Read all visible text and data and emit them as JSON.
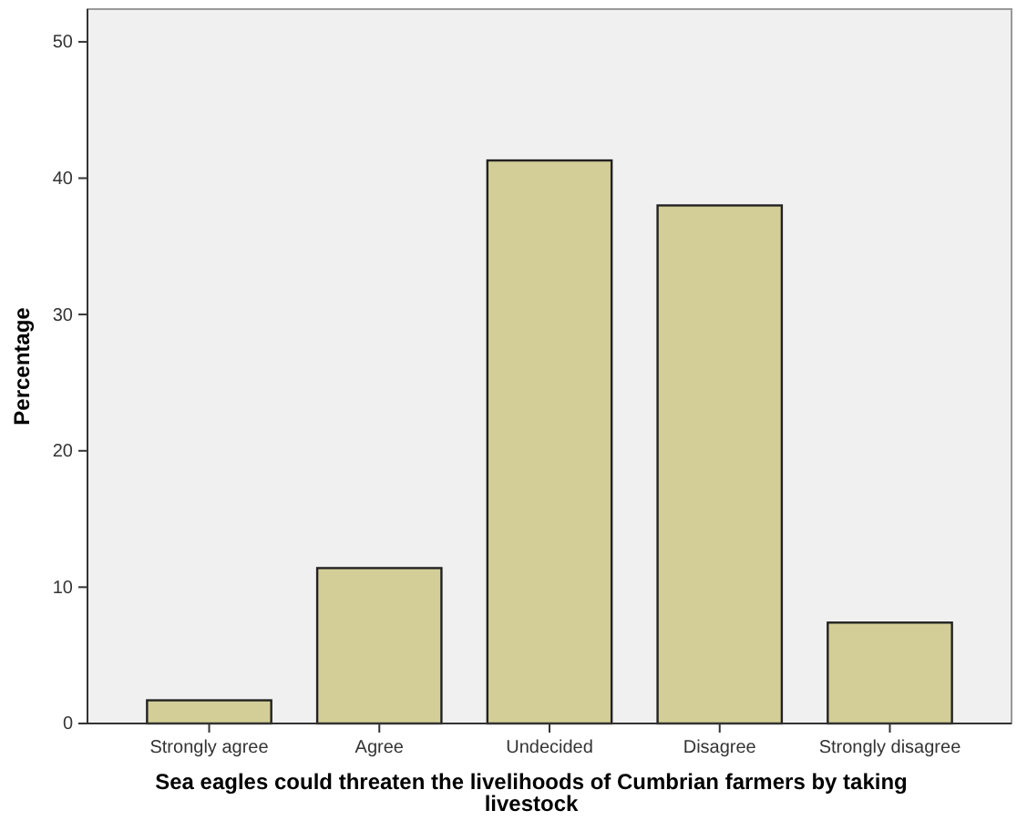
{
  "chart_data": {
    "type": "bar",
    "xlabel": "Sea eagles could threaten the livelihoods of Cumbrian farmers by taking livestock",
    "ylabel": "Percentage",
    "categories": [
      "Strongly agree",
      "Agree",
      "Undecided",
      "Disagree",
      "Strongly disagree"
    ],
    "values": [
      1.7,
      11.4,
      41.3,
      38.0,
      7.4
    ],
    "color": "#d3ce97",
    "ylim": [
      0,
      52.4
    ],
    "yticks": [
      0,
      10,
      20,
      30,
      40,
      50
    ],
    "grid": false
  }
}
